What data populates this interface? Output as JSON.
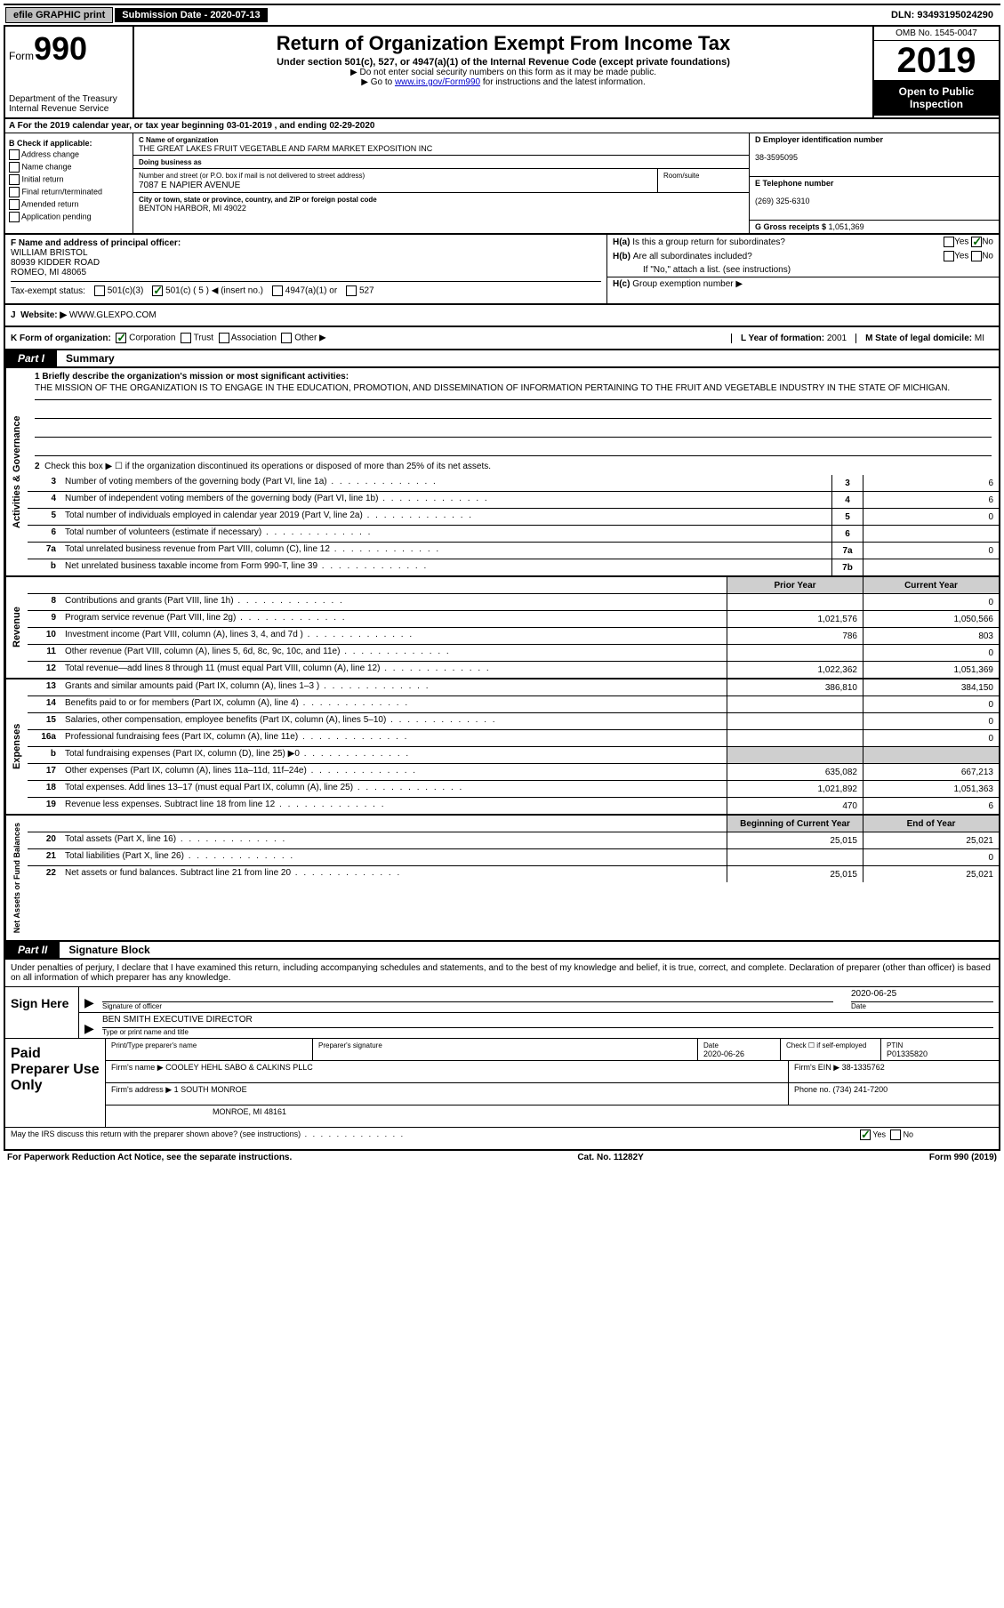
{
  "topbar": {
    "efile": "efile GRAPHIC print",
    "subdate_label": "Submission Date - 2020-07-13",
    "dln": "DLN: 93493195024290"
  },
  "header": {
    "form_label": "Form",
    "form_number": "990",
    "dept": "Department of the Treasury",
    "irs": "Internal Revenue Service",
    "title": "Return of Organization Exempt From Income Tax",
    "sub1": "Under section 501(c), 527, or 4947(a)(1) of the Internal Revenue Code (except private foundations)",
    "sub2": "▶ Do not enter social security numbers on this form as it may be made public.",
    "sub3_pre": "▶ Go to ",
    "sub3_link": "www.irs.gov/Form990",
    "sub3_post": " for instructions and the latest information.",
    "omb": "OMB No. 1545-0047",
    "year": "2019",
    "open": "Open to Public Inspection"
  },
  "row_a": "A For the 2019 calendar year, or tax year beginning 03-01-2019    , and ending 02-29-2020",
  "col_b": {
    "title": "B Check if applicable:",
    "items": [
      "Address change",
      "Name change",
      "Initial return",
      "Final return/terminated",
      "Amended return",
      "Application pending"
    ]
  },
  "col_c": {
    "name_lbl": "C Name of organization",
    "name": "THE GREAT LAKES FRUIT VEGETABLE AND FARM MARKET EXPOSITION INC",
    "dba_lbl": "Doing business as",
    "addr_lbl": "Number and street (or P.O. box if mail is not delivered to street address)",
    "addr": "7087 E NAPIER AVENUE",
    "room_lbl": "Room/suite",
    "city_lbl": "City or town, state or province, country, and ZIP or foreign postal code",
    "city": "BENTON HARBOR, MI  49022"
  },
  "col_d": {
    "ein_lbl": "D Employer identification number",
    "ein": "38-3595095",
    "tel_lbl": "E Telephone number",
    "tel": "(269) 325-6310",
    "gross_lbl": "G Gross receipts $ ",
    "gross": "1,051,369"
  },
  "section_f": {
    "lbl": "F Name and address of principal officer:",
    "name": "WILLIAM BRISTOL",
    "addr1": "80939 KIDDER ROAD",
    "addr2": "ROMEO, MI  48065"
  },
  "section_h": {
    "a_lbl": "H(a)",
    "a_txt": "Is this a group return for subordinates?",
    "a_yes": "Yes",
    "a_no": "No",
    "b_lbl": "H(b)",
    "b_txt": "Are all subordinates included?",
    "b_note": "If \"No,\" attach a list. (see instructions)",
    "c_lbl": "H(c)",
    "c_txt": "Group exemption number ▶"
  },
  "tax_status": {
    "lbl": "Tax-exempt status:",
    "opt1": "501(c)(3)",
    "opt2": "501(c) ( 5 ) ◀ (insert no.)",
    "opt3": "4947(a)(1) or",
    "opt4": "527"
  },
  "j_row": {
    "lbl": "J",
    "website_lbl": "Website: ▶",
    "website": "WWW.GLEXPO.COM"
  },
  "k_row": {
    "lbl": "K Form of organization:",
    "opts": [
      "Corporation",
      "Trust",
      "Association",
      "Other ▶"
    ],
    "l_lbl": "L Year of formation: ",
    "l_val": "2001",
    "m_lbl": "M State of legal domicile: ",
    "m_val": "MI"
  },
  "part1": {
    "tab": "Part I",
    "title": "Summary",
    "mission_lbl": "1  Briefly describe the organization's mission or most significant activities:",
    "mission": "THE MISSION OF THE ORGANIZATION IS TO ENGAGE IN THE EDUCATION, PROMOTION, AND DISSEMINATION OF INFORMATION PERTAINING TO THE FRUIT AND VEGETABLE INDUSTRY IN THE STATE OF MICHIGAN.",
    "line2": "Check this box ▶ ☐ if the organization discontinued its operations or disposed of more than 25% of its net assets."
  },
  "side_labels": {
    "gov": "Activities & Governance",
    "rev": "Revenue",
    "exp": "Expenses",
    "net": "Net Assets or Fund Balances"
  },
  "gov_lines": [
    {
      "num": "3",
      "desc": "Number of voting members of the governing body (Part VI, line 1a)",
      "box": "3",
      "val": "6"
    },
    {
      "num": "4",
      "desc": "Number of independent voting members of the governing body (Part VI, line 1b)",
      "box": "4",
      "val": "6"
    },
    {
      "num": "5",
      "desc": "Total number of individuals employed in calendar year 2019 (Part V, line 2a)",
      "box": "5",
      "val": "0"
    },
    {
      "num": "6",
      "desc": "Total number of volunteers (estimate if necessary)",
      "box": "6",
      "val": ""
    },
    {
      "num": "7a",
      "desc": "Total unrelated business revenue from Part VIII, column (C), line 12",
      "box": "7a",
      "val": "0"
    },
    {
      "num": "b",
      "desc": "Net unrelated business taxable income from Form 990-T, line 39",
      "box": "7b",
      "val": ""
    }
  ],
  "col_headers": {
    "prior": "Prior Year",
    "current": "Current Year",
    "begin": "Beginning of Current Year",
    "end": "End of Year"
  },
  "rev_lines": [
    {
      "num": "8",
      "desc": "Contributions and grants (Part VIII, line 1h)",
      "prior": "",
      "curr": "0"
    },
    {
      "num": "9",
      "desc": "Program service revenue (Part VIII, line 2g)",
      "prior": "1,021,576",
      "curr": "1,050,566"
    },
    {
      "num": "10",
      "desc": "Investment income (Part VIII, column (A), lines 3, 4, and 7d )",
      "prior": "786",
      "curr": "803"
    },
    {
      "num": "11",
      "desc": "Other revenue (Part VIII, column (A), lines 5, 6d, 8c, 9c, 10c, and 11e)",
      "prior": "",
      "curr": "0"
    },
    {
      "num": "12",
      "desc": "Total revenue—add lines 8 through 11 (must equal Part VIII, column (A), line 12)",
      "prior": "1,022,362",
      "curr": "1,051,369"
    }
  ],
  "exp_lines": [
    {
      "num": "13",
      "desc": "Grants and similar amounts paid (Part IX, column (A), lines 1–3 )",
      "prior": "386,810",
      "curr": "384,150"
    },
    {
      "num": "14",
      "desc": "Benefits paid to or for members (Part IX, column (A), line 4)",
      "prior": "",
      "curr": "0"
    },
    {
      "num": "15",
      "desc": "Salaries, other compensation, employee benefits (Part IX, column (A), lines 5–10)",
      "prior": "",
      "curr": "0"
    },
    {
      "num": "16a",
      "desc": "Professional fundraising fees (Part IX, column (A), line 11e)",
      "prior": "",
      "curr": "0"
    },
    {
      "num": "b",
      "desc": "Total fundraising expenses (Part IX, column (D), line 25) ▶0",
      "prior": "shade",
      "curr": "shade"
    },
    {
      "num": "17",
      "desc": "Other expenses (Part IX, column (A), lines 11a–11d, 11f–24e)",
      "prior": "635,082",
      "curr": "667,213"
    },
    {
      "num": "18",
      "desc": "Total expenses. Add lines 13–17 (must equal Part IX, column (A), line 25)",
      "prior": "1,021,892",
      "curr": "1,051,363"
    },
    {
      "num": "19",
      "desc": "Revenue less expenses. Subtract line 18 from line 12",
      "prior": "470",
      "curr": "6"
    }
  ],
  "net_lines": [
    {
      "num": "20",
      "desc": "Total assets (Part X, line 16)",
      "prior": "25,015",
      "curr": "25,021"
    },
    {
      "num": "21",
      "desc": "Total liabilities (Part X, line 26)",
      "prior": "",
      "curr": "0"
    },
    {
      "num": "22",
      "desc": "Net assets or fund balances. Subtract line 21 from line 20",
      "prior": "25,015",
      "curr": "25,021"
    }
  ],
  "part2": {
    "tab": "Part II",
    "title": "Signature Block",
    "decl": "Under penalties of perjury, I declare that I have examined this return, including accompanying schedules and statements, and to the best of my knowledge and belief, it is true, correct, and complete. Declaration of preparer (other than officer) is based on all information of which preparer has any knowledge."
  },
  "sign": {
    "here": "Sign Here",
    "sig_lbl": "Signature of officer",
    "date": "2020-06-25",
    "date_lbl": "Date",
    "name": "BEN SMITH  EXECUTIVE DIRECTOR",
    "name_lbl": "Type or print name and title"
  },
  "preparer": {
    "lbl": "Paid Preparer Use Only",
    "h1": "Print/Type preparer's name",
    "h2": "Preparer's signature",
    "h3": "Date",
    "h3v": "2020-06-26",
    "h4": "Check ☐ if self-employed",
    "h5": "PTIN",
    "h5v": "P01335820",
    "firm_lbl": "Firm's name    ▶",
    "firm": "COOLEY HEHL SABO & CALKINS PLLC",
    "ein_lbl": "Firm's EIN ▶",
    "ein": "38-1335762",
    "addr_lbl": "Firm's address ▶",
    "addr1": "1 SOUTH MONROE",
    "addr2": "MONROE, MI  48161",
    "phone_lbl": "Phone no. ",
    "phone": "(734) 241-7200",
    "discuss": "May the IRS discuss this return with the preparer shown above? (see instructions)",
    "yes": "Yes",
    "no": "No"
  },
  "footer": {
    "left": "For Paperwork Reduction Act Notice, see the separate instructions.",
    "center": "Cat. No. 11282Y",
    "right": "Form 990 (2019)"
  }
}
